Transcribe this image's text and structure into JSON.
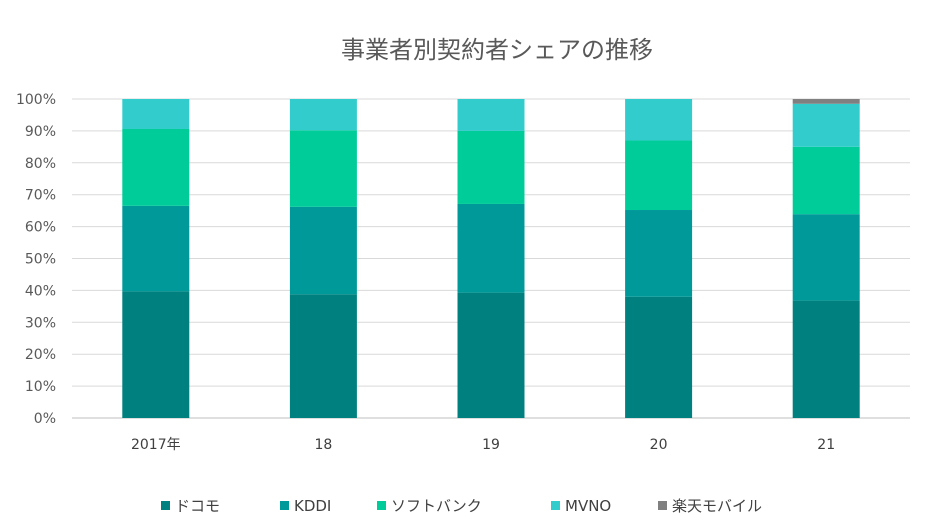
{
  "chart_data": {
    "type": "bar",
    "stacked": true,
    "title": "事業者別契約者シェアの推移",
    "categories": [
      "2017年",
      "18",
      "19",
      "20",
      "21"
    ],
    "ylim": [
      0,
      100
    ],
    "y_tick_labels": [
      "0%",
      "10%",
      "20%",
      "30%",
      "40%",
      "50%",
      "60%",
      "70%",
      "80%",
      "90%",
      "100%"
    ],
    "grid": true,
    "legend_position": "bottom",
    "series": [
      {
        "name": "ドコモ",
        "color": "#00807f",
        "values": [
          39.7,
          38.8,
          39.3,
          38.0,
          36.8
        ]
      },
      {
        "name": "KDDI",
        "color": "#009999",
        "values": [
          26.8,
          27.4,
          27.8,
          27.2,
          27.1
        ]
      },
      {
        "name": "ソフトバンク",
        "color": "#00cc99",
        "values": [
          24.1,
          24.0,
          22.9,
          21.8,
          21.1
        ]
      },
      {
        "name": "MVNO",
        "color": "#33cccc",
        "values": [
          9.4,
          9.8,
          10.0,
          13.0,
          13.5
        ]
      },
      {
        "name": "楽天モバイル",
        "color": "#808080",
        "values": [
          0,
          0,
          0,
          0,
          1.5
        ]
      }
    ]
  }
}
